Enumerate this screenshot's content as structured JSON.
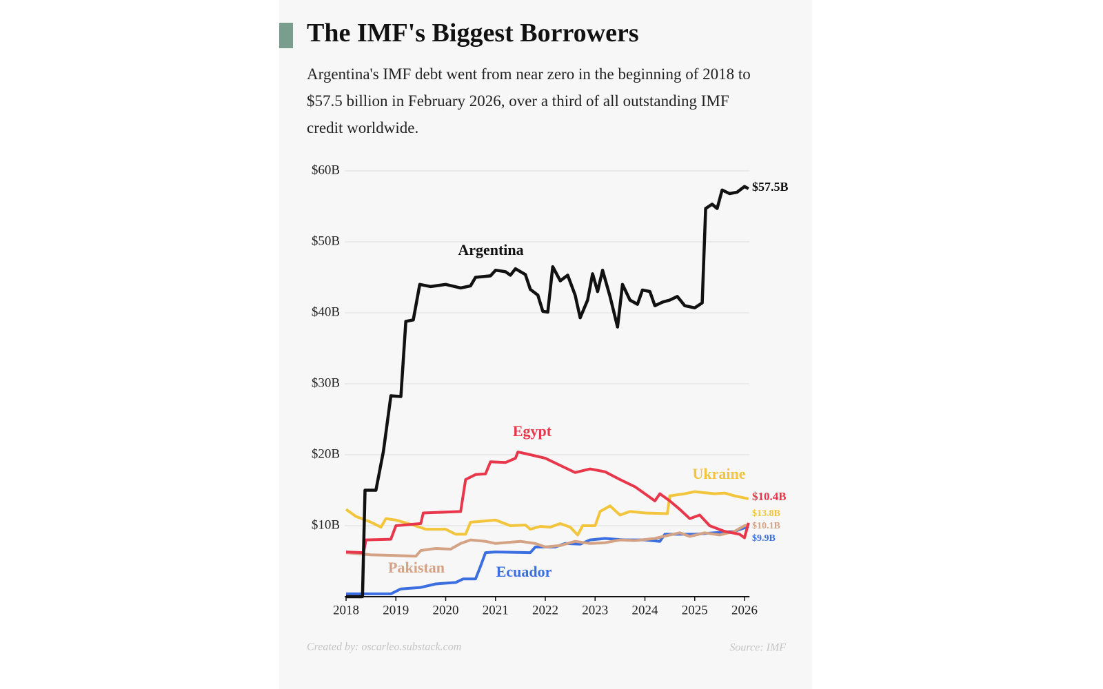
{
  "chart_data": {
    "type": "line",
    "title": "The IMF's Biggest Borrowers",
    "subtitle": "Argentina's IMF debt went from near zero in the beginning of 2018 to $57.5 billion in February 2026, over a third of all outstanding IMF credit worldwide.",
    "credit": "Created by: oscarleo.substack.com",
    "source": "Source: IMF",
    "xlim": [
      2018,
      2026.1
    ],
    "xticks": [
      2018,
      2019,
      2020,
      2021,
      2022,
      2023,
      2024,
      2025,
      2026
    ],
    "ylim": [
      0,
      60
    ],
    "yticks": [
      {
        "value": 10,
        "label": "$10B"
      },
      {
        "value": 20,
        "label": "$20B"
      },
      {
        "value": 30,
        "label": "$30B"
      },
      {
        "value": 40,
        "label": "$40B"
      },
      {
        "value": 50,
        "label": "$50B"
      },
      {
        "value": 60,
        "label": "$60B"
      }
    ],
    "grid": true,
    "series": [
      {
        "name": "Argentina",
        "color": "#111111",
        "end_label": "$57.5B",
        "x": [
          2018.0,
          2018.33,
          2018.38,
          2018.6,
          2018.75,
          2018.9,
          2019.1,
          2019.2,
          2019.35,
          2019.48,
          2019.7,
          2020.0,
          2020.3,
          2020.5,
          2020.6,
          2020.9,
          2021.0,
          2021.2,
          2021.3,
          2021.4,
          2021.6,
          2021.7,
          2021.85,
          2021.95,
          2022.05,
          2022.15,
          2022.3,
          2022.45,
          2022.6,
          2022.7,
          2022.85,
          2022.95,
          2023.05,
          2023.15,
          2023.3,
          2023.45,
          2023.55,
          2023.7,
          2023.85,
          2023.95,
          2024.1,
          2024.2,
          2024.35,
          2024.5,
          2024.65,
          2024.8,
          2025.0,
          2025.15,
          2025.22,
          2025.35,
          2025.45,
          2025.55,
          2025.7,
          2025.85,
          2026.0,
          2026.08
        ],
        "values": [
          0,
          0,
          15,
          15,
          20.5,
          28.3,
          28.2,
          38.8,
          39,
          44,
          43.7,
          44,
          43.5,
          43.8,
          45,
          45.2,
          46,
          45.8,
          45.3,
          46.2,
          45.4,
          43.3,
          42.5,
          40.2,
          40.1,
          46.5,
          44.5,
          45.3,
          42.5,
          39.3,
          41.8,
          45.5,
          43,
          46,
          42.3,
          38,
          44,
          41.8,
          41.2,
          43.2,
          43,
          41,
          41.5,
          41.8,
          42.3,
          41,
          40.7,
          41.4,
          54.7,
          55.3,
          54.7,
          57.3,
          56.8,
          57,
          57.8,
          57.5
        ]
      },
      {
        "name": "Egypt",
        "color": "#e8374a",
        "end_label": "$10.4B",
        "x": [
          2018.0,
          2018.35,
          2018.4,
          2018.9,
          2019.0,
          2019.5,
          2019.55,
          2020.3,
          2020.4,
          2020.6,
          2020.8,
          2020.9,
          2021.2,
          2021.4,
          2021.45,
          2021.7,
          2022.0,
          2022.3,
          2022.6,
          2022.9,
          2023.2,
          2023.5,
          2023.8,
          2024.0,
          2024.2,
          2024.3,
          2024.5,
          2024.7,
          2024.9,
          2025.1,
          2025.3,
          2025.6,
          2025.9,
          2026.0,
          2026.08
        ],
        "values": [
          6.3,
          6.2,
          8,
          8.1,
          10,
          10.3,
          11.8,
          12,
          16.5,
          17.2,
          17.3,
          19,
          18.9,
          19.5,
          20.4,
          20,
          19.5,
          18.5,
          17.5,
          18,
          17.6,
          16.5,
          15.5,
          14.5,
          13.5,
          14.5,
          13.5,
          12.3,
          11,
          11.5,
          10,
          9.2,
          8.8,
          8.3,
          10.4
        ]
      },
      {
        "name": "Ukraine",
        "color": "#f2c53d",
        "end_label": "$13.8B",
        "x": [
          2018.0,
          2018.2,
          2018.5,
          2018.7,
          2018.8,
          2019.0,
          2019.3,
          2019.6,
          2020.0,
          2020.2,
          2020.4,
          2020.5,
          2020.7,
          2021.0,
          2021.3,
          2021.6,
          2021.7,
          2021.9,
          2022.1,
          2022.3,
          2022.5,
          2022.65,
          2022.75,
          2023.0,
          2023.1,
          2023.3,
          2023.5,
          2023.7,
          2024.0,
          2024.45,
          2024.5,
          2024.8,
          2025.0,
          2025.4,
          2025.6,
          2025.8,
          2026.08
        ],
        "values": [
          12.3,
          11.3,
          10.5,
          9.8,
          11,
          10.8,
          10.2,
          9.5,
          9.5,
          8.8,
          8.8,
          10.5,
          10.6,
          10.8,
          10,
          10.1,
          9.5,
          9.9,
          9.8,
          10.3,
          9.8,
          8.7,
          10,
          10,
          12,
          12.8,
          11.5,
          12,
          11.8,
          11.7,
          14.2,
          14.5,
          14.8,
          14.5,
          14.6,
          14.2,
          13.8
        ]
      },
      {
        "name": "Pakistan",
        "color": "#d4a285",
        "end_label": "$10.1B",
        "x": [
          2018.0,
          2018.5,
          2019.0,
          2019.4,
          2019.5,
          2019.8,
          2020.1,
          2020.3,
          2020.5,
          2020.8,
          2021.0,
          2021.5,
          2021.8,
          2022.0,
          2022.3,
          2022.6,
          2022.9,
          2023.2,
          2023.5,
          2023.8,
          2024.2,
          2024.5,
          2024.7,
          2024.9,
          2025.2,
          2025.5,
          2025.8,
          2026.0,
          2026.08
        ],
        "values": [
          6.2,
          5.9,
          5.8,
          5.7,
          6.5,
          6.8,
          6.7,
          7.5,
          8,
          7.8,
          7.5,
          7.8,
          7.5,
          7.0,
          7.2,
          7.8,
          7.5,
          7.6,
          8.0,
          7.9,
          8.2,
          8.7,
          9.0,
          8.5,
          9.0,
          8.7,
          9.2,
          10.0,
          10.1
        ]
      },
      {
        "name": "Ecuador",
        "color": "#3b6ee0",
        "end_label": "$9.9B",
        "x": [
          2018.0,
          2018.9,
          2019.1,
          2019.5,
          2019.8,
          2020.2,
          2020.35,
          2020.6,
          2020.7,
          2020.8,
          2021.0,
          2021.7,
          2021.8,
          2022.2,
          2022.4,
          2022.7,
          2022.9,
          2023.2,
          2023.6,
          2024.0,
          2024.3,
          2024.4,
          2025.0,
          2025.4,
          2025.8,
          2026.08
        ],
        "values": [
          0.4,
          0.4,
          1.1,
          1.3,
          1.8,
          2.0,
          2.5,
          2.5,
          4.3,
          6.2,
          6.3,
          6.2,
          7.0,
          7.0,
          7.5,
          7.4,
          8.0,
          8.2,
          8.0,
          8.0,
          7.8,
          8.8,
          8.8,
          9.0,
          9.2,
          9.9
        ]
      }
    ]
  }
}
